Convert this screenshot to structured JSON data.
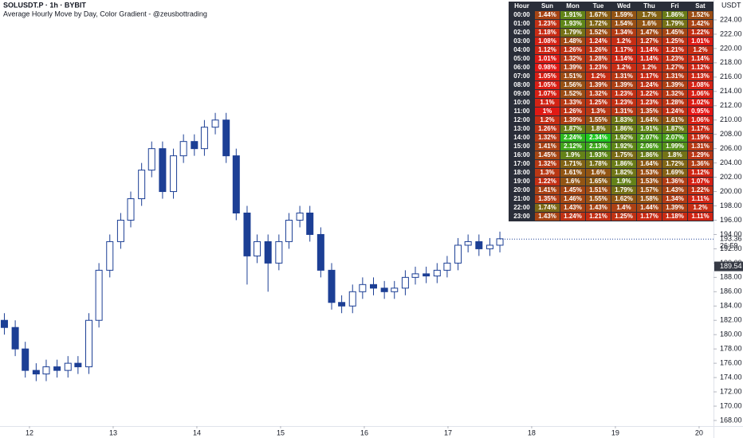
{
  "chart_data": {
    "type": "candlestick",
    "symbol": "SOLUSDT.P · 1h · BYBIT",
    "title": "Average Hourly Move by Day, Color Gradient - @zeusbottrading",
    "currency": "USDT",
    "up_color": "#ffffff",
    "down_color": "#1c3f95",
    "border_color": "#1c3f95",
    "x": [
      11.7,
      11.83,
      11.95,
      12.08,
      12.2,
      12.33,
      12.46,
      12.58,
      12.71,
      12.83,
      12.96,
      13.09,
      13.21,
      13.34,
      13.46,
      13.59,
      13.72,
      13.84,
      13.97,
      14.09,
      14.22,
      14.35,
      14.47,
      14.6,
      14.72,
      14.85,
      14.98,
      15.1,
      15.23,
      15.35,
      15.48,
      15.61,
      15.73,
      15.86,
      15.98,
      16.11,
      16.24,
      16.36,
      16.49,
      16.61,
      16.74,
      16.87,
      16.99,
      17.12,
      17.24,
      17.37,
      17.5,
      17.62
    ],
    "open": [
      182,
      181,
      178,
      175,
      174.5,
      175.5,
      175,
      176,
      175.5,
      182,
      189,
      193,
      196,
      199,
      203,
      206,
      200,
      205,
      207,
      206,
      209,
      210,
      205,
      197,
      191,
      193,
      190,
      193,
      196,
      197,
      194,
      189,
      184.5,
      184,
      186,
      187,
      186.5,
      186,
      186.5,
      188,
      188.5,
      188.2,
      189,
      190,
      192.5,
      193,
      192,
      192.5
    ],
    "high": [
      183,
      182,
      179,
      176,
      176.5,
      176.5,
      177,
      177,
      183,
      190,
      194,
      197,
      200,
      204,
      207,
      207,
      206,
      208,
      208,
      210,
      211,
      211,
      206,
      198,
      194,
      194,
      194,
      197,
      198,
      198,
      195,
      190,
      185.5,
      187,
      188,
      188,
      187.5,
      187.5,
      189,
      189.5,
      189.5,
      190,
      191,
      193.5,
      194,
      194,
      193.5,
      194.4
    ],
    "low": [
      180,
      177,
      174,
      173.5,
      173.5,
      174,
      174,
      174.5,
      174.5,
      181,
      188,
      192,
      195,
      198,
      202,
      199,
      199,
      204,
      205,
      205,
      208,
      204,
      196,
      187,
      190,
      186,
      189,
      192,
      195,
      193,
      188,
      183.5,
      183,
      183,
      185,
      185.5,
      185,
      185,
      185.5,
      187,
      187.2,
      187.2,
      188,
      189,
      191.5,
      191,
      191,
      191.5
    ],
    "close": [
      181,
      178,
      175,
      174.5,
      175.5,
      175,
      176,
      175.5,
      182,
      189,
      193,
      196,
      199,
      203,
      206,
      200,
      205,
      207,
      206,
      209,
      210,
      205,
      197,
      191,
      193,
      190,
      193,
      196,
      197,
      194,
      189,
      184.5,
      184,
      186,
      187,
      186.5,
      186,
      186.5,
      188,
      188.5,
      188.2,
      189,
      190,
      192.5,
      193,
      192,
      192.5,
      193.4
    ],
    "xlim": [
      11.648,
      20.172
    ],
    "xticks": [
      12,
      13,
      14,
      15,
      16,
      17,
      18,
      19,
      20
    ],
    "ylim": [
      167.22,
      226.78
    ],
    "yticks": [
      {
        "value": 168,
        "label": "168.00"
      },
      {
        "value": 170,
        "label": "170.00"
      },
      {
        "value": 172,
        "label": "172.00"
      },
      {
        "value": 174,
        "label": "174.00"
      },
      {
        "value": 176,
        "label": "176.00"
      },
      {
        "value": 178,
        "label": "178.00"
      },
      {
        "value": 180,
        "label": "180.00"
      },
      {
        "value": 182,
        "label": "182.00"
      },
      {
        "value": 184,
        "label": "184.00"
      },
      {
        "value": 186,
        "label": "186.00"
      },
      {
        "value": 188,
        "label": "188.00"
      },
      {
        "value": 190,
        "label": "190.00"
      },
      {
        "value": 192,
        "label": "192.00"
      },
      {
        "value": 194,
        "label": "194.00"
      },
      {
        "value": 196,
        "label": "196.00"
      },
      {
        "value": 198,
        "label": "198.00"
      },
      {
        "value": 200,
        "label": "200.00"
      },
      {
        "value": 202,
        "label": "202.00"
      },
      {
        "value": 204,
        "label": "204.00"
      },
      {
        "value": 206,
        "label": "206.00"
      },
      {
        "value": 208,
        "label": "208.00"
      },
      {
        "value": 210,
        "label": "210.00"
      },
      {
        "value": 212,
        "label": "212.00"
      },
      {
        "value": 214,
        "label": "214.00"
      },
      {
        "value": 216,
        "label": "216.00"
      },
      {
        "value": 218,
        "label": "218.00"
      },
      {
        "value": 220,
        "label": "220.00"
      },
      {
        "value": 222,
        "label": "222.00"
      },
      {
        "value": 224,
        "label": "224.00"
      }
    ],
    "last_price": {
      "value": 193.36,
      "label": "193.36",
      "countdown": "26:59"
    },
    "mark_price": {
      "value": 189.54,
      "label": "189.54"
    },
    "table": {
      "header": [
        "Hour",
        "Sun",
        "Mon",
        "Tue",
        "Wed",
        "Thu",
        "Fri",
        "Sat"
      ],
      "gradient": [
        "#e61414",
        "#8c5a14",
        "#1ec81e"
      ],
      "rows": [
        [
          "00:00",
          "1.44%",
          "1.91%",
          "1.67%",
          "1.59%",
          "1.7%",
          "1.86%",
          "1.52%"
        ],
        [
          "01:00",
          "1.23%",
          "1.93%",
          "1.72%",
          "1.54%",
          "1.6%",
          "1.79%",
          "1.42%"
        ],
        [
          "02:00",
          "1.18%",
          "1.79%",
          "1.52%",
          "1.34%",
          "1.47%",
          "1.45%",
          "1.22%"
        ],
        [
          "03:00",
          "1.08%",
          "1.48%",
          "1.24%",
          "1.2%",
          "1.27%",
          "1.25%",
          "1.01%"
        ],
        [
          "04:00",
          "1.12%",
          "1.26%",
          "1.26%",
          "1.17%",
          "1.14%",
          "1.21%",
          "1.2%"
        ],
        [
          "05:00",
          "1.01%",
          "1.32%",
          "1.28%",
          "1.14%",
          "1.14%",
          "1.23%",
          "1.14%"
        ],
        [
          "06:00",
          "0.98%",
          "1.39%",
          "1.23%",
          "1.2%",
          "1.2%",
          "1.27%",
          "1.12%"
        ],
        [
          "07:00",
          "1.05%",
          "1.51%",
          "1.2%",
          "1.31%",
          "1.17%",
          "1.31%",
          "1.13%"
        ],
        [
          "08:00",
          "1.05%",
          "1.56%",
          "1.39%",
          "1.39%",
          "1.24%",
          "1.39%",
          "1.08%"
        ],
        [
          "09:00",
          "1.07%",
          "1.52%",
          "1.32%",
          "1.23%",
          "1.22%",
          "1.32%",
          "1.06%"
        ],
        [
          "10:00",
          "1.1%",
          "1.33%",
          "1.25%",
          "1.23%",
          "1.23%",
          "1.28%",
          "1.02%"
        ],
        [
          "11:00",
          "1%",
          "1.26%",
          "1.3%",
          "1.31%",
          "1.35%",
          "1.24%",
          "0.95%"
        ],
        [
          "12:00",
          "1.2%",
          "1.39%",
          "1.55%",
          "1.83%",
          "1.64%",
          "1.61%",
          "1.06%"
        ],
        [
          "13:00",
          "1.26%",
          "1.87%",
          "1.8%",
          "1.86%",
          "1.91%",
          "1.87%",
          "1.17%"
        ],
        [
          "14:00",
          "1.32%",
          "2.24%",
          "2.34%",
          "1.92%",
          "2.07%",
          "2.07%",
          "1.19%"
        ],
        [
          "15:00",
          "1.41%",
          "2.12%",
          "2.13%",
          "1.92%",
          "2.06%",
          "1.99%",
          "1.31%"
        ],
        [
          "16:00",
          "1.45%",
          "1.9%",
          "1.93%",
          "1.75%",
          "1.86%",
          "1.8%",
          "1.29%"
        ],
        [
          "17:00",
          "1.32%",
          "1.71%",
          "1.78%",
          "1.86%",
          "1.64%",
          "1.72%",
          "1.36%"
        ],
        [
          "18:00",
          "1.3%",
          "1.61%",
          "1.6%",
          "1.82%",
          "1.53%",
          "1.69%",
          "1.12%"
        ],
        [
          "19:00",
          "1.22%",
          "1.6%",
          "1.65%",
          "1.9%",
          "1.53%",
          "1.36%",
          "1.07%"
        ],
        [
          "20:00",
          "1.41%",
          "1.45%",
          "1.51%",
          "1.79%",
          "1.57%",
          "1.43%",
          "1.22%"
        ],
        [
          "21:00",
          "1.35%",
          "1.46%",
          "1.55%",
          "1.62%",
          "1.58%",
          "1.34%",
          "1.11%"
        ],
        [
          "22:00",
          "1.74%",
          "1.43%",
          "1.43%",
          "1.4%",
          "1.44%",
          "1.39%",
          "1.2%"
        ],
        [
          "23:00",
          "1.43%",
          "1.24%",
          "1.21%",
          "1.25%",
          "1.17%",
          "1.18%",
          "1.11%"
        ]
      ]
    }
  }
}
